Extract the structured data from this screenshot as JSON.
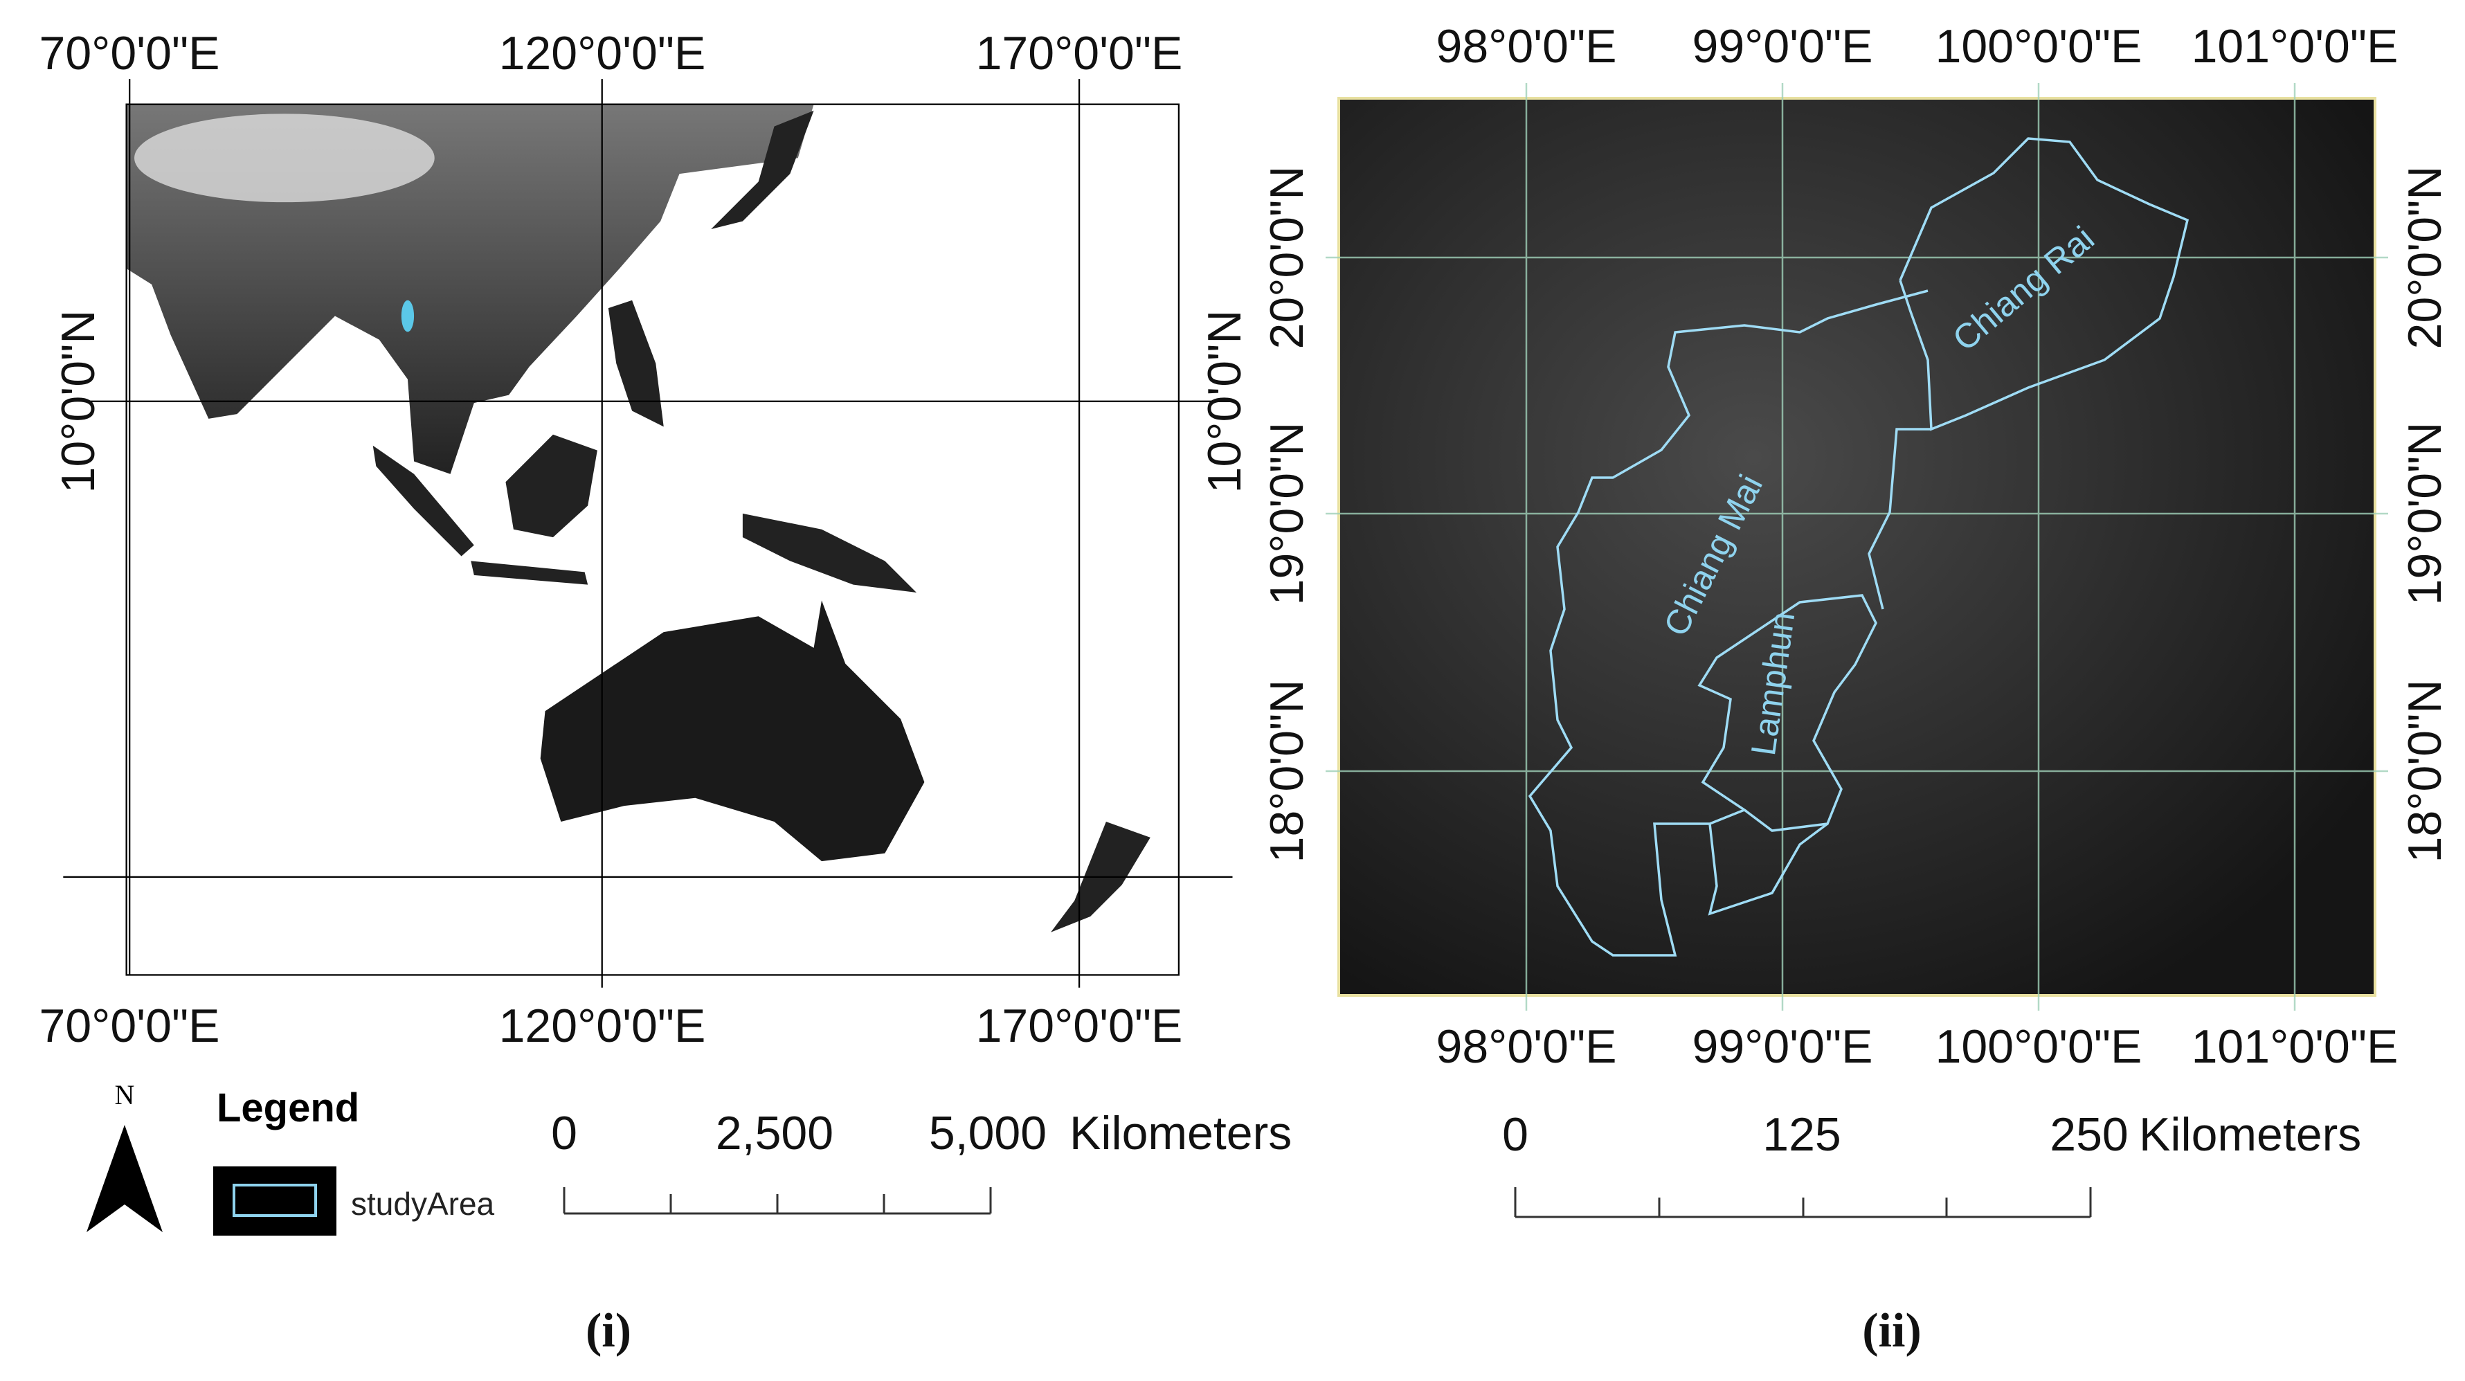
{
  "panel_i": {
    "caption": "(i)",
    "lon_labels_top": [
      "70°0'0\"E",
      "120°0'0\"E",
      "170°0'0\"E"
    ],
    "lon_labels_bottom": [
      "70°0'0\"E",
      "120°0'0\"E",
      "170°0'0\"E"
    ],
    "lat_label_left": "10°0'0\"N",
    "lat_label_right": "10°0'0\"N",
    "north": "N",
    "legend_title": "Legend",
    "legend_item": "studyArea",
    "scale_labels": [
      "0",
      "2,500",
      "5,000"
    ],
    "scale_unit": "Kilometers"
  },
  "panel_ii": {
    "caption": "(ii)",
    "lon_labels_top": [
      "98°0'0\"E",
      "99°0'0\"E",
      "100°0'0\"E",
      "101°0'0\"E"
    ],
    "lon_labels_bottom": [
      "98°0'0\"E",
      "99°0'0\"E",
      "100°0'0\"E",
      "101°0'0\"E"
    ],
    "lat_labels_left": [
      "20°0'0\"N",
      "19°0'0\"N",
      "18°0'0\"N"
    ],
    "lat_labels_right": [
      "20°0'0\"N",
      "19°0'0\"N",
      "18°0'0\"N"
    ],
    "regions": [
      "Chiang Rai",
      "Chiang Mai",
      "Lamphun"
    ],
    "scale_labels": [
      "0",
      "125",
      "250"
    ],
    "scale_unit": "Kilometers"
  }
}
